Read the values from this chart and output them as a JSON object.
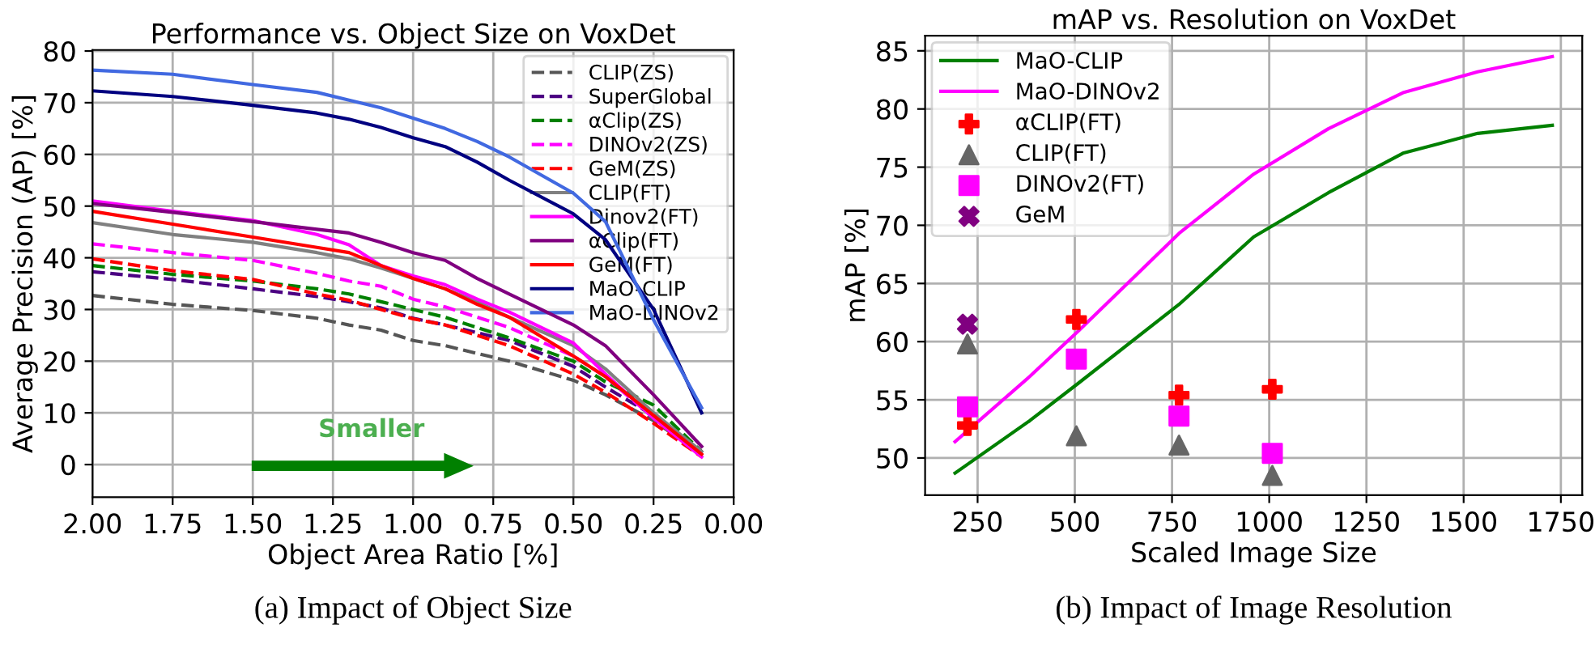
{
  "chart_data": [
    {
      "type": "line",
      "title": "Performance vs. Object Size on VoxDet",
      "xlabel": "Object Area Ratio [%]",
      "ylabel": "Average Precision (AP) [%]",
      "x": [
        2.0,
        1.75,
        1.5,
        1.3,
        1.2,
        1.1,
        1.0,
        0.9,
        0.8,
        0.7,
        0.5,
        0.4,
        0.25,
        0.1
      ],
      "series": [
        {
          "name": "CLIP(ZS)",
          "color": "#555555",
          "line_style": "dashed",
          "values": [
            32.7,
            31,
            29.8,
            28.3,
            27,
            26,
            24,
            23,
            21.5,
            20,
            16.3,
            13.5,
            8.5,
            2.0
          ]
        },
        {
          "name": "SuperGlobal",
          "color": "#4b0082",
          "line_style": "dashed",
          "values": [
            37.3,
            35.8,
            34,
            32.5,
            31.5,
            30.3,
            28.3,
            27,
            25.5,
            24,
            19,
            15,
            9.5,
            2.5
          ]
        },
        {
          "name": "αClip(ZS)",
          "color": "#008000",
          "line_style": "dashed",
          "values": [
            38.5,
            36.8,
            35.5,
            34,
            33,
            31.5,
            30,
            28.5,
            26.5,
            24.5,
            20,
            16,
            11.5,
            2.5
          ]
        },
        {
          "name": "DINOv2(ZS)",
          "color": "#ff00ff",
          "line_style": "dashed",
          "values": [
            42.7,
            41,
            39.5,
            37,
            35.5,
            34.5,
            32,
            30.5,
            28.5,
            26.5,
            21,
            17,
            9,
            1.5
          ]
        },
        {
          "name": "GeM(ZS)",
          "color": "#ff0000",
          "line_style": "dashed",
          "values": [
            39.8,
            37.5,
            35.8,
            33,
            31.8,
            30,
            28.2,
            27,
            25,
            23,
            17.5,
            14,
            8,
            1.5
          ]
        },
        {
          "name": "CLIP(FT)",
          "color": "#808080",
          "line_style": "solid",
          "values": [
            46.8,
            44.5,
            43,
            41,
            39.8,
            38,
            36,
            34,
            31.5,
            28.5,
            23,
            18.5,
            10,
            2.5
          ]
        },
        {
          "name": "Dinov2(FT)",
          "color": "#ff00ff",
          "line_style": "solid",
          "values": [
            51,
            49,
            47.2,
            44.5,
            42.5,
            38.5,
            36.5,
            34.8,
            32,
            29.5,
            23.5,
            17.5,
            9,
            1.5
          ]
        },
        {
          "name": "αClip(FT)",
          "color": "#800080",
          "line_style": "solid",
          "values": [
            50.5,
            48.8,
            47,
            45.5,
            44.8,
            43,
            41,
            39.5,
            36,
            33,
            27,
            23,
            13.5,
            3.5
          ]
        },
        {
          "name": "GeM(FT)",
          "color": "#ff0000",
          "line_style": "solid",
          "values": [
            49,
            46.5,
            44,
            42,
            41,
            38.5,
            36,
            34,
            31,
            28.5,
            21,
            17,
            9.5,
            2
          ]
        },
        {
          "name": "MaO-CLIP",
          "color": "#000080",
          "line_style": "solid",
          "values": [
            72.3,
            71.2,
            69.5,
            68,
            66.8,
            65.2,
            63.2,
            61.5,
            58.5,
            55,
            48.5,
            43.5,
            30,
            10
          ]
        },
        {
          "name": "MaO-DINOv2",
          "color": "#4169e1",
          "line_style": "solid",
          "values": [
            76.3,
            75.5,
            73.5,
            72,
            70.5,
            69,
            67,
            65,
            62.5,
            59.5,
            52.5,
            47,
            28,
            11
          ]
        }
      ],
      "xlim": [
        2.0,
        0.0
      ],
      "xticks": [
        {
          "value": 2.0,
          "label": "2.00"
        },
        {
          "value": 1.75,
          "label": "1.75"
        },
        {
          "value": 1.5,
          "label": "1.50"
        },
        {
          "value": 1.25,
          "label": "1.25"
        },
        {
          "value": 1.0,
          "label": "1.00"
        },
        {
          "value": 0.75,
          "label": "0.75"
        },
        {
          "value": 0.5,
          "label": "0.50"
        },
        {
          "value": 0.25,
          "label": "0.25"
        },
        {
          "value": 0.0,
          "label": "0.00"
        }
      ],
      "ylim": [
        -6.3,
        80.2
      ],
      "yticks": [
        0,
        10,
        20,
        30,
        40,
        50,
        60,
        70,
        80
      ],
      "grid": true,
      "legend": "top right",
      "annotations": [
        "Smaller",
        "(a) Impact of Object Size"
      ]
    },
    {
      "type": "line",
      "title": "mAP vs. Resolution on VoxDet",
      "xlabel": "Scaled Image Size",
      "ylabel": "mAP [%]",
      "series": [
        {
          "name": "MaO-CLIP",
          "color": "#008000",
          "x": [
            192,
            384,
            512,
            768,
            960,
            1152,
            1344,
            1536,
            1728
          ],
          "values": [
            48.7,
            53.2,
            56.5,
            63.2,
            69,
            72.8,
            76.2,
            77.9,
            78.6
          ]
        },
        {
          "name": "MaO-DINOv2",
          "color": "#ff00ff",
          "x": [
            192,
            384,
            512,
            768,
            960,
            1152,
            1344,
            1536,
            1728
          ],
          "values": [
            51.4,
            57,
            61,
            69.3,
            74.4,
            78.3,
            81.4,
            83.2,
            84.5
          ]
        },
        {
          "name": "αCLIP(FT)",
          "type": "scatter",
          "marker": "plus",
          "color": "#ff0000",
          "x": [
            224,
            504,
            768,
            1008
          ],
          "values": [
            52.8,
            61.9,
            55.4,
            55.9
          ]
        },
        {
          "name": "CLIP(FT)",
          "type": "scatter",
          "marker": "triangle",
          "color": "#666666",
          "x": [
            224,
            504,
            768,
            1008
          ],
          "values": [
            59.8,
            51.9,
            51.1,
            48.5
          ]
        },
        {
          "name": "DINOv2(FT)",
          "type": "scatter",
          "marker": "square",
          "color": "#ff00ff",
          "x": [
            224,
            504,
            768,
            1008
          ],
          "values": [
            54.4,
            58.5,
            53.6,
            50.4
          ]
        },
        {
          "name": "GeM",
          "type": "scatter",
          "marker": "cross",
          "color": "#800080",
          "x": [
            224
          ],
          "values": [
            61.5
          ]
        }
      ],
      "xlim": [
        115,
        1805
      ],
      "xticks": [
        250,
        500,
        750,
        1000,
        1250,
        1500,
        1750
      ],
      "ylim": [
        46.8,
        86.3
      ],
      "yticks": [
        50,
        55,
        60,
        65,
        70,
        75,
        80,
        85
      ],
      "grid": true,
      "legend": "top left",
      "annotations": [
        "(b) Impact of Image Resolution"
      ]
    }
  ]
}
